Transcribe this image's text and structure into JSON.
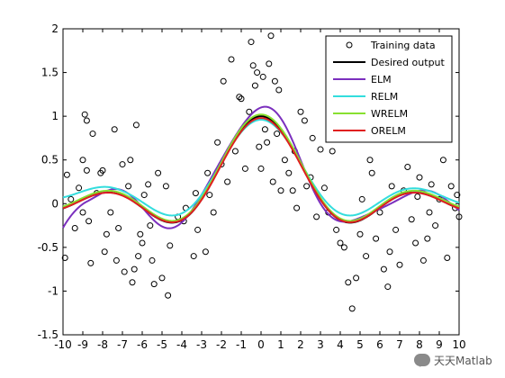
{
  "chart_data": {
    "type": "line",
    "title": "",
    "xlabel": "",
    "ylabel": "",
    "xlim": [
      -10,
      10
    ],
    "ylim": [
      -1.5,
      2
    ],
    "xticks": [
      -10,
      -9,
      -8,
      -7,
      -6,
      -5,
      -4,
      -3,
      -2,
      -1,
      0,
      1,
      2,
      3,
      4,
      5,
      6,
      7,
      8,
      9,
      10
    ],
    "yticks": [
      -1.5,
      -1,
      -0.5,
      0,
      0.5,
      1,
      1.5,
      2
    ],
    "legend_position": "top-right",
    "grid": false,
    "series": [
      {
        "name": "Training data",
        "kind": "scatter",
        "marker": "open-circle",
        "color": "#000000",
        "points": [
          [
            -9.9,
            -0.62
          ],
          [
            -9.8,
            0.33
          ],
          [
            -9.6,
            0.05
          ],
          [
            -9.4,
            -0.28
          ],
          [
            -9.2,
            0.18
          ],
          [
            -9.0,
            0.5
          ],
          [
            -9.0,
            -0.1
          ],
          [
            -8.9,
            1.02
          ],
          [
            -8.8,
            0.95
          ],
          [
            -8.8,
            0.38
          ],
          [
            -8.7,
            -0.2
          ],
          [
            -8.6,
            -0.68
          ],
          [
            -8.5,
            0.8
          ],
          [
            -8.3,
            0.12
          ],
          [
            -8.1,
            0.35
          ],
          [
            -8.0,
            0.38
          ],
          [
            -7.9,
            -0.55
          ],
          [
            -7.8,
            -0.35
          ],
          [
            -7.6,
            -0.1
          ],
          [
            -7.4,
            0.85
          ],
          [
            -7.3,
            -0.65
          ],
          [
            -7.2,
            -0.28
          ],
          [
            -7.0,
            0.45
          ],
          [
            -6.9,
            -0.78
          ],
          [
            -6.7,
            0.2
          ],
          [
            -6.6,
            0.5
          ],
          [
            -6.5,
            -0.9
          ],
          [
            -6.4,
            -0.75
          ],
          [
            -6.3,
            0.9
          ],
          [
            -6.2,
            -0.6
          ],
          [
            -6.1,
            -0.35
          ],
          [
            -6.0,
            -0.45
          ],
          [
            -5.9,
            0.1
          ],
          [
            -5.7,
            0.22
          ],
          [
            -5.6,
            -0.25
          ],
          [
            -5.5,
            -0.65
          ],
          [
            -5.4,
            -0.92
          ],
          [
            -5.2,
            0.35
          ],
          [
            -5.0,
            -0.85
          ],
          [
            -4.8,
            0.2
          ],
          [
            -4.7,
            -1.05
          ],
          [
            -4.6,
            -0.48
          ],
          [
            -4.2,
            -0.15
          ],
          [
            -3.9,
            -0.2
          ],
          [
            -3.8,
            -0.05
          ],
          [
            -3.4,
            -0.6
          ],
          [
            -3.3,
            0.12
          ],
          [
            -3.2,
            -0.3
          ],
          [
            -2.8,
            -0.55
          ],
          [
            -2.7,
            0.35
          ],
          [
            -2.6,
            0.1
          ],
          [
            -2.4,
            -0.1
          ],
          [
            -2.2,
            0.7
          ],
          [
            -2.0,
            0.45
          ],
          [
            -1.9,
            1.4
          ],
          [
            -1.7,
            0.25
          ],
          [
            -1.5,
            1.65
          ],
          [
            -1.3,
            0.6
          ],
          [
            -1.1,
            1.22
          ],
          [
            -1.0,
            1.2
          ],
          [
            -0.8,
            0.4
          ],
          [
            -0.6,
            1.05
          ],
          [
            -0.5,
            1.85
          ],
          [
            -0.4,
            1.58
          ],
          [
            -0.3,
            1.35
          ],
          [
            -0.2,
            1.5
          ],
          [
            -0.1,
            0.65
          ],
          [
            0.0,
            0.4
          ],
          [
            0.1,
            1.45
          ],
          [
            0.2,
            0.85
          ],
          [
            0.3,
            0.7
          ],
          [
            0.4,
            1.6
          ],
          [
            0.5,
            1.92
          ],
          [
            0.6,
            0.25
          ],
          [
            0.7,
            1.4
          ],
          [
            0.8,
            0.8
          ],
          [
            0.9,
            1.3
          ],
          [
            1.0,
            0.15
          ],
          [
            1.2,
            0.5
          ],
          [
            1.4,
            0.35
          ],
          [
            1.6,
            0.15
          ],
          [
            1.7,
            0.6
          ],
          [
            1.8,
            -0.05
          ],
          [
            2.0,
            1.05
          ],
          [
            2.2,
            0.95
          ],
          [
            2.3,
            0.2
          ],
          [
            2.5,
            0.3
          ],
          [
            2.6,
            0.75
          ],
          [
            2.8,
            -0.15
          ],
          [
            3.0,
            0.62
          ],
          [
            3.2,
            0.18
          ],
          [
            3.4,
            -0.1
          ],
          [
            3.6,
            0.6
          ],
          [
            3.8,
            -0.3
          ],
          [
            4.0,
            -0.45
          ],
          [
            4.2,
            -0.5
          ],
          [
            4.4,
            -0.9
          ],
          [
            4.6,
            -1.2
          ],
          [
            4.8,
            -0.85
          ],
          [
            5.0,
            -0.35
          ],
          [
            5.1,
            0.05
          ],
          [
            5.3,
            -0.6
          ],
          [
            5.5,
            0.5
          ],
          [
            5.6,
            0.35
          ],
          [
            5.8,
            -0.4
          ],
          [
            6.0,
            -0.1
          ],
          [
            6.2,
            -0.75
          ],
          [
            6.4,
            -0.95
          ],
          [
            6.5,
            -0.55
          ],
          [
            6.6,
            0.2
          ],
          [
            6.8,
            -0.3
          ],
          [
            7.0,
            -0.7
          ],
          [
            7.2,
            0.15
          ],
          [
            7.4,
            0.42
          ],
          [
            7.6,
            -0.18
          ],
          [
            7.8,
            -0.45
          ],
          [
            8.0,
            0.3
          ],
          [
            8.2,
            -0.65
          ],
          [
            8.4,
            -0.4
          ],
          [
            8.6,
            0.22
          ],
          [
            8.8,
            -0.25
          ],
          [
            9.0,
            0.05
          ],
          [
            9.2,
            0.5
          ],
          [
            9.4,
            -0.62
          ],
          [
            9.6,
            0.2
          ],
          [
            9.8,
            -0.05
          ],
          [
            9.9,
            0.1
          ],
          [
            10.0,
            -0.15
          ],
          [
            8.5,
            -0.1
          ],
          [
            7.9,
            0.08
          ]
        ]
      },
      {
        "name": "Desired output",
        "kind": "line",
        "color": "#000000",
        "function": "sinc"
      },
      {
        "name": "ELM",
        "kind": "line",
        "color": "#7b2fbe",
        "function": "elm"
      },
      {
        "name": "RELM",
        "kind": "line",
        "color": "#33dddd",
        "function": "relm"
      },
      {
        "name": "WRELM",
        "kind": "line",
        "color": "#88e030",
        "function": "wrelm"
      },
      {
        "name": "ORELM",
        "kind": "line",
        "color": "#e02020",
        "function": "orelm"
      }
    ]
  },
  "watermark": {
    "text": "天天Matlab",
    "icon": "chat-bubble-icon"
  }
}
